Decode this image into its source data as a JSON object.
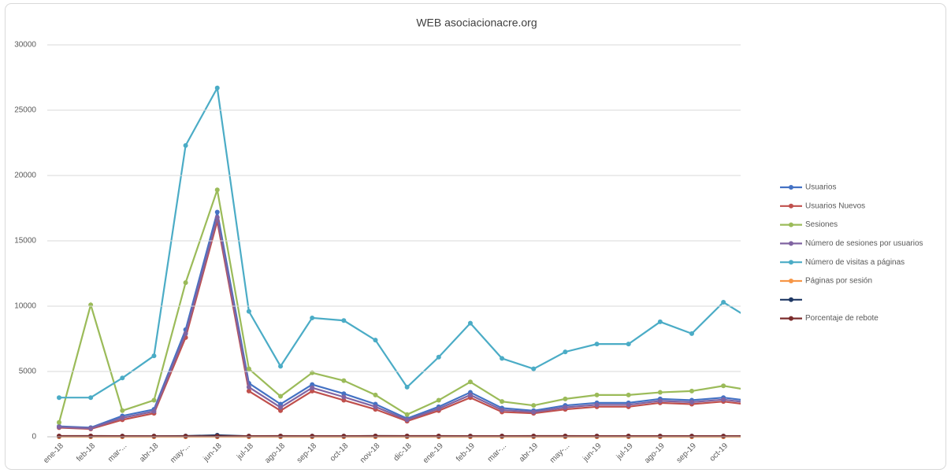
{
  "chart_data": {
    "type": "line",
    "title": "WEB  asociacionacre.org",
    "categories": [
      "ene-18",
      "feb-18",
      "mar-...",
      "abr-18",
      "may-...",
      "jun-18",
      "jul-18",
      "ago-18",
      "sep-18",
      "oct-18",
      "nov-18",
      "dic-18",
      "ene-19",
      "feb-19",
      "mar-...",
      "abr-19",
      "may-...",
      "jun-19",
      "jul-19",
      "ago-19",
      "sep-19",
      "oct-19",
      null
    ],
    "ylim": [
      0,
      30000
    ],
    "yticks": [
      0,
      5000,
      10000,
      15000,
      20000,
      25000,
      30000
    ],
    "grid": true,
    "legend": "right",
    "series": [
      {
        "name": "Usuarios",
        "color": "#4472c4",
        "values": [
          800,
          700,
          1600,
          2100,
          8200,
          17200,
          4100,
          2500,
          4000,
          3300,
          2500,
          1400,
          2300,
          3400,
          2200,
          2000,
          2400,
          2600,
          2600,
          2900,
          2800,
          3000,
          2700
        ]
      },
      {
        "name": "Usuarios Nuevos",
        "color": "#c0504d",
        "values": [
          700,
          600,
          1300,
          1800,
          7600,
          16500,
          3500,
          2000,
          3500,
          2800,
          2100,
          1200,
          2000,
          3000,
          1900,
          1800,
          2100,
          2300,
          2300,
          2600,
          2500,
          2700,
          2400
        ]
      },
      {
        "name": "Sesiones",
        "color": "#9bbb59",
        "values": [
          1100,
          10100,
          2000,
          2800,
          11800,
          18900,
          5200,
          3100,
          4900,
          4300,
          3200,
          1700,
          2800,
          4200,
          2700,
          2400,
          2900,
          3200,
          3200,
          3400,
          3500,
          3900,
          3500
        ]
      },
      {
        "name": "Número de sesiones por usuarios",
        "color": "#8064a2",
        "values": [
          750,
          650,
          1450,
          1950,
          7900,
          16800,
          3800,
          2250,
          3750,
          3050,
          2300,
          1300,
          2150,
          3200,
          2050,
          1900,
          2250,
          2450,
          2450,
          2750,
          2650,
          2850,
          2550
        ]
      },
      {
        "name": "Número de visitas a páginas",
        "color": "#4bacc6",
        "values": [
          3000,
          3000,
          4500,
          6200,
          22300,
          26700,
          9600,
          5400,
          9100,
          8900,
          7400,
          3800,
          6100,
          8700,
          6000,
          5200,
          6500,
          7100,
          7100,
          8800,
          7900,
          10300,
          8800
        ]
      },
      {
        "name": "Páginas por sesión",
        "color": "#f79646",
        "values": [
          3,
          1,
          2,
          2,
          2,
          1,
          2,
          2,
          2,
          2,
          2,
          2,
          2,
          2,
          2,
          2,
          2,
          2,
          2,
          2,
          2,
          2,
          2
        ]
      },
      {
        "color": "#1f3864",
        "values": [
          50,
          50,
          50,
          50,
          60,
          120,
          50,
          50,
          50,
          50,
          60,
          50,
          50,
          50,
          50,
          50,
          50,
          50,
          50,
          50,
          50,
          50,
          50
        ]
      },
      {
        "name": "Porcentaje de rebote",
        "color": "#7b2c2c",
        "values": [
          60,
          65,
          55,
          50,
          45,
          40,
          55,
          60,
          55,
          55,
          58,
          62,
          58,
          52,
          57,
          60,
          58,
          56,
          57,
          55,
          56,
          55,
          57
        ]
      }
    ]
  }
}
